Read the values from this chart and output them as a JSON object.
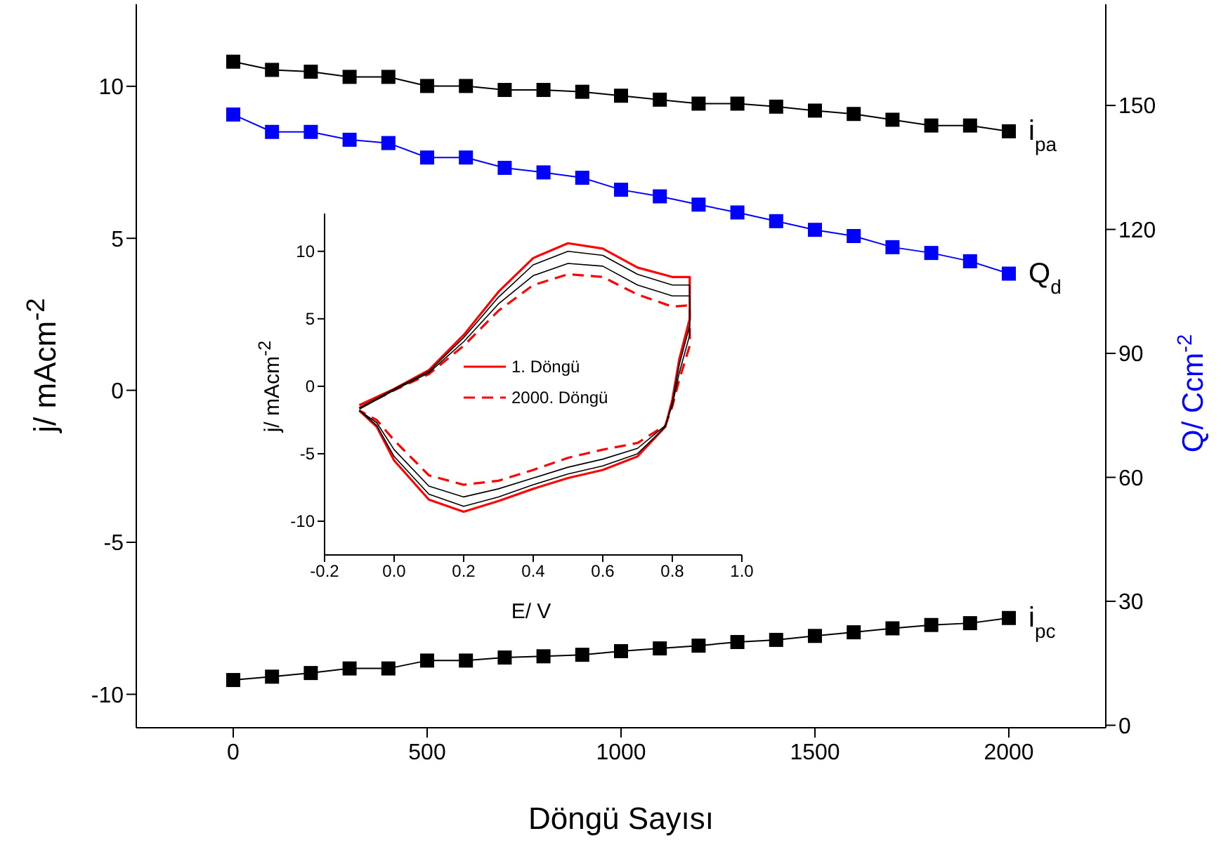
{
  "chart_data": [
    {
      "type": "line",
      "xlabel": "Döngü Sayısı",
      "ylabel": "j/ mAcm$^{-2}$",
      "y2label": "Q/ Ccm$^{-2}$",
      "marker": "square",
      "x": [
        0,
        100,
        200,
        300,
        400,
        500,
        600,
        700,
        800,
        900,
        1000,
        1100,
        1200,
        1300,
        1400,
        1500,
        1600,
        1700,
        1800,
        1900,
        2000
      ],
      "xlim": [
        -250,
        2250
      ],
      "xticks": [
        0,
        500,
        1000,
        1500,
        2000
      ],
      "ylim": [
        -11.1,
        12.7
      ],
      "yticks": [
        -10,
        -5,
        0,
        5,
        10
      ],
      "y2lim": [
        -0.6,
        174.5
      ],
      "y2ticks": [
        0,
        30,
        60,
        90,
        120,
        150
      ],
      "series": [
        {
          "name": "i$_{pa}$",
          "color": "#000000",
          "values": [
            10.81,
            10.54,
            10.48,
            10.31,
            10.31,
            10.01,
            10.01,
            9.88,
            9.88,
            9.82,
            9.69,
            9.56,
            9.43,
            9.43,
            9.33,
            9.2,
            9.09,
            8.9,
            8.71,
            8.71,
            8.52
          ]
        },
        {
          "name": "Q$_{d}$",
          "color": "#0000ff",
          "axis": "y2",
          "values": [
            147.8,
            143.6,
            143.6,
            141.7,
            140.9,
            137.4,
            137.4,
            134.9,
            133.8,
            132.5,
            129.6,
            128,
            126,
            124.1,
            122,
            119.9,
            118.4,
            115.7,
            114.3,
            112.3,
            109.3
          ]
        },
        {
          "name": "i$_{pc}$",
          "color": "#000000",
          "values": [
            -9.53,
            -9.42,
            -9.3,
            -9.15,
            -9.15,
            -8.89,
            -8.89,
            -8.79,
            -8.75,
            -8.7,
            -8.58,
            -8.49,
            -8.4,
            -8.28,
            -8.21,
            -8.08,
            -7.96,
            -7.83,
            -7.72,
            -7.66,
            -7.49
          ]
        }
      ]
    },
    {
      "type": "line",
      "xlabel": "E/ V",
      "ylabel": "j/ mAcm$^{-2}$",
      "marker": "none",
      "legend": "center",
      "xlim": [
        -0.2,
        1.0
      ],
      "xticks": [
        -0.2,
        {
          "value": 0,
          "label": "0.0"
        },
        0.2,
        0.4,
        0.6,
        0.8,
        {
          "value": 1,
          "label": "1.0"
        }
      ],
      "ylim": [
        -12.5,
        12.8
      ],
      "yticks": [
        -10,
        -5,
        0,
        5,
        10
      ],
      "series": [
        {
          "name": "1. Döngü",
          "color": "#ff0000",
          "line_style": "solid",
          "x": [
            -0.1,
            0,
            0.1,
            0.2,
            0.3,
            0.4,
            0.5,
            0.6,
            0.7,
            0.8,
            0.85,
            0.85,
            0.82,
            0.8,
            0.78,
            0.7,
            0.6,
            0.5,
            0.4,
            0.3,
            0.2,
            0.1,
            0,
            -0.05,
            -0.1
          ],
          "values": [
            -1.4,
            -0.2,
            1.2,
            3.8,
            7.0,
            9.5,
            10.6,
            10.2,
            8.8,
            8.1,
            8.1,
            5.0,
            2.0,
            -1.0,
            -3.0,
            -5.2,
            -6.2,
            -6.8,
            -7.6,
            -8.5,
            -9.3,
            -8.4,
            -5.5,
            -3.0,
            -1.8
          ]
        },
        {
          "name": "2000. Döngü",
          "color": "#ff0000",
          "line_style": "dashed",
          "x": [
            -0.1,
            0,
            0.1,
            0.2,
            0.3,
            0.4,
            0.5,
            0.6,
            0.7,
            0.8,
            0.85,
            0.85,
            0.82,
            0.8,
            0.78,
            0.7,
            0.6,
            0.5,
            0.4,
            0.3,
            0.2,
            0.1,
            0,
            -0.05,
            -0.1
          ],
          "values": [
            -1.6,
            -0.3,
            0.9,
            3.0,
            5.6,
            7.5,
            8.3,
            8.1,
            6.8,
            5.9,
            6.0,
            3.0,
            0.5,
            -1.5,
            -2.9,
            -4.2,
            -4.7,
            -5.3,
            -6.2,
            -7.0,
            -7.3,
            -6.6,
            -4.0,
            -2.5,
            -1.8
          ]
        },
        {
          "color": "#000000",
          "x": [
            -0.1,
            0,
            0.1,
            0.2,
            0.3,
            0.4,
            0.5,
            0.6,
            0.7,
            0.8,
            0.85,
            0.85,
            0.82,
            0.8,
            0.78,
            0.7,
            0.6,
            0.5,
            0.4,
            0.3,
            0.2,
            0.1,
            0,
            -0.05,
            -0.1
          ],
          "values": [
            -1.6,
            -0.2,
            1.1,
            3.6,
            6.6,
            9.0,
            10.0,
            9.7,
            8.3,
            7.5,
            7.5,
            4.5,
            1.6,
            -1.2,
            -3.0,
            -5.0,
            -5.9,
            -6.5,
            -7.3,
            -8.2,
            -8.9,
            -8.0,
            -5.2,
            -2.9,
            -1.8
          ]
        },
        {
          "color": "#000000",
          "x": [
            -0.1,
            0,
            0.1,
            0.2,
            0.3,
            0.4,
            0.5,
            0.6,
            0.7,
            0.8,
            0.85,
            0.85,
            0.82,
            0.8,
            0.78,
            0.7,
            0.6,
            0.5,
            0.4,
            0.3,
            0.2,
            0.1,
            0,
            -0.05,
            -0.1
          ],
          "values": [
            -1.7,
            -0.3,
            1.0,
            3.3,
            6.1,
            8.2,
            9.1,
            8.9,
            7.5,
            6.7,
            6.7,
            3.8,
            1.0,
            -1.4,
            -2.9,
            -4.6,
            -5.4,
            -6.0,
            -6.8,
            -7.6,
            -8.2,
            -7.4,
            -4.7,
            -2.7,
            -1.8
          ]
        }
      ]
    }
  ]
}
